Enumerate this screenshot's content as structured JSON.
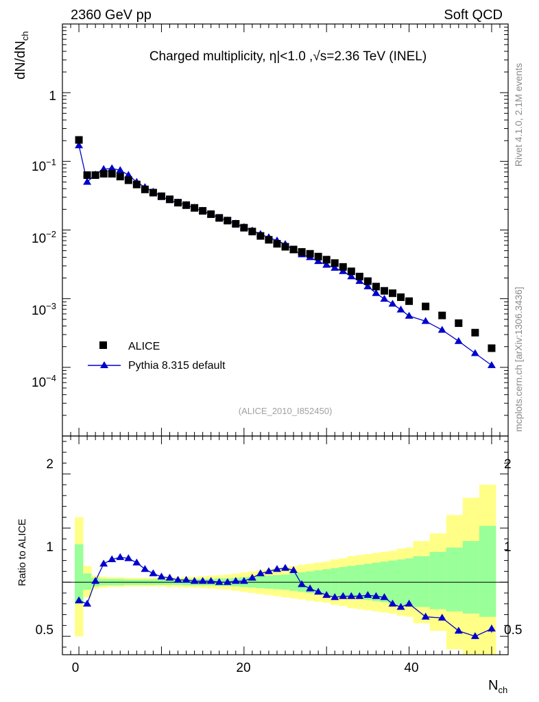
{
  "header": {
    "left_label": "2360 GeV pp",
    "right_label": "Soft QCD",
    "title": "Charged multiplicity, η|<1.0 ,√s=2.36 TeV (INEL)",
    "watermark": "(ALICE_2010_I852450)",
    "side_top": "Rivet 4.1.0,  2.1M events",
    "side_bottom": "mcplots.cern.ch [arXiv:1306.3436]"
  },
  "colors": {
    "data": "#000000",
    "mc": "#0000cc",
    "band_inner": "#99ff99",
    "band_outer": "#ffff88"
  },
  "chart_data": [
    {
      "type": "scatter",
      "name": "main",
      "title": "Charged multiplicity, η|<1.0 ,√s=2.36 TeV (INEL)",
      "xlabel": "N_ch",
      "ylabel": "dN/dN_ch",
      "yscale": "log",
      "xlim": [
        -2,
        52
      ],
      "ylim": [
        1e-05,
        10
      ],
      "ytick_labels": [
        "10^-4",
        "10^-3",
        "10^-2",
        "10^-1",
        "1"
      ],
      "legend_position": "lower-left",
      "series": [
        {
          "name": "ALICE",
          "marker": "square",
          "x": [
            0,
            1,
            2,
            3,
            4,
            5,
            6,
            7,
            8,
            9,
            10,
            11,
            12,
            13,
            14,
            15,
            16,
            17,
            18,
            19,
            20,
            21,
            22,
            23,
            24,
            25,
            26,
            27,
            28,
            29,
            30,
            31,
            32,
            33,
            34,
            35,
            36,
            37,
            38,
            39,
            40,
            42,
            44,
            46,
            48,
            50
          ],
          "values": [
            0.205,
            0.063,
            0.063,
            0.066,
            0.066,
            0.06,
            0.053,
            0.046,
            0.039,
            0.035,
            0.031,
            0.028,
            0.025,
            0.023,
            0.021,
            0.019,
            0.017,
            0.015,
            0.0137,
            0.0123,
            0.0108,
            0.0095,
            0.0082,
            0.0072,
            0.0063,
            0.0057,
            0.0052,
            0.0048,
            0.0045,
            0.0041,
            0.0037,
            0.0033,
            0.0029,
            0.0025,
            0.0021,
            0.0018,
            0.0015,
            0.0013,
            0.0012,
            0.00105,
            0.00092,
            0.00077,
            0.00057,
            0.00044,
            0.00032,
            0.00019
          ]
        },
        {
          "name": "Pythia 8.315 default",
          "marker": "triangle",
          "line": true,
          "x": [
            0,
            1,
            2,
            3,
            4,
            5,
            6,
            7,
            8,
            9,
            10,
            11,
            12,
            13,
            14,
            15,
            16,
            17,
            18,
            19,
            20,
            21,
            22,
            23,
            24,
            25,
            26,
            27,
            28,
            29,
            30,
            31,
            32,
            33,
            34,
            35,
            36,
            37,
            38,
            39,
            40,
            42,
            44,
            46,
            48,
            50
          ],
          "values": [
            0.17,
            0.05,
            0.064,
            0.077,
            0.079,
            0.074,
            0.063,
            0.05,
            0.042,
            0.036,
            0.031,
            0.027,
            0.025,
            0.023,
            0.021,
            0.019,
            0.017,
            0.015,
            0.0137,
            0.0124,
            0.011,
            0.0098,
            0.0087,
            0.0078,
            0.007,
            0.0062,
            0.0051,
            0.0044,
            0.004,
            0.0035,
            0.0031,
            0.0028,
            0.0025,
            0.0021,
            0.0018,
            0.0015,
            0.0012,
            0.00099,
            0.00084,
            0.00069,
            0.00056,
            0.00047,
            0.00035,
            0.00024,
            0.00016,
            0.000107
          ]
        }
      ]
    },
    {
      "type": "line",
      "name": "ratio",
      "xlabel": "N_ch",
      "ylabel": "Ratio to ALICE",
      "xlim": [
        -2,
        52
      ],
      "ylim": [
        0.33,
        2.35
      ],
      "ytick_labels": [
        "0.5",
        "1",
        "2"
      ],
      "xtick_labels": [
        "0",
        "20",
        "40"
      ],
      "bands": {
        "edges": [
          -0.5,
          0.5,
          1.5,
          2.5,
          3.5,
          4.5,
          5.5,
          6.5,
          7.5,
          8.5,
          9.5,
          10.5,
          11.5,
          12.5,
          13.5,
          14.5,
          15.5,
          16.5,
          17.5,
          18.5,
          19.5,
          20.5,
          21.5,
          22.5,
          23.5,
          24.5,
          25.5,
          26.5,
          27.5,
          28.5,
          29.5,
          30.5,
          31.5,
          32.5,
          33.5,
          34.5,
          35.5,
          36.5,
          37.5,
          38.5,
          39.5,
          40.5,
          42.5,
          44.5,
          46.5,
          48.5,
          50.5
        ],
        "inner_lo": [
          0.8,
          0.93,
          0.96,
          0.97,
          0.97,
          0.97,
          0.975,
          0.975,
          0.975,
          0.975,
          0.975,
          0.975,
          0.975,
          0.97,
          0.97,
          0.97,
          0.97,
          0.965,
          0.965,
          0.96,
          0.955,
          0.95,
          0.945,
          0.94,
          0.935,
          0.93,
          0.92,
          0.91,
          0.9,
          0.895,
          0.885,
          0.875,
          0.865,
          0.855,
          0.845,
          0.835,
          0.825,
          0.815,
          0.8,
          0.79,
          0.78,
          0.77,
          0.75,
          0.73,
          0.71,
          0.68
        ],
        "inner_hi": [
          1.35,
          1.08,
          1.04,
          1.03,
          1.03,
          1.03,
          1.025,
          1.025,
          1.025,
          1.025,
          1.025,
          1.025,
          1.025,
          1.03,
          1.03,
          1.03,
          1.03,
          1.035,
          1.035,
          1.04,
          1.045,
          1.05,
          1.055,
          1.06,
          1.065,
          1.07,
          1.08,
          1.09,
          1.1,
          1.11,
          1.12,
          1.13,
          1.14,
          1.15,
          1.16,
          1.17,
          1.18,
          1.19,
          1.2,
          1.21,
          1.22,
          1.24,
          1.28,
          1.32,
          1.38,
          1.52
        ],
        "outer_lo": [
          0.5,
          0.86,
          0.94,
          0.95,
          0.955,
          0.955,
          0.96,
          0.96,
          0.96,
          0.96,
          0.96,
          0.955,
          0.955,
          0.95,
          0.95,
          0.945,
          0.94,
          0.935,
          0.93,
          0.92,
          0.91,
          0.9,
          0.89,
          0.88,
          0.87,
          0.86,
          0.85,
          0.84,
          0.83,
          0.82,
          0.81,
          0.79,
          0.78,
          0.76,
          0.75,
          0.74,
          0.73,
          0.72,
          0.71,
          0.69,
          0.68,
          0.62,
          0.55,
          0.38,
          0.33,
          0.33
        ],
        "outer_hi": [
          1.6,
          1.15,
          1.06,
          1.05,
          1.045,
          1.045,
          1.04,
          1.04,
          1.04,
          1.04,
          1.04,
          1.045,
          1.045,
          1.05,
          1.05,
          1.055,
          1.06,
          1.065,
          1.07,
          1.08,
          1.09,
          1.1,
          1.11,
          1.12,
          1.13,
          1.14,
          1.15,
          1.16,
          1.17,
          1.18,
          1.19,
          1.21,
          1.22,
          1.24,
          1.25,
          1.26,
          1.27,
          1.28,
          1.29,
          1.31,
          1.32,
          1.38,
          1.45,
          1.62,
          1.78,
          1.9
        ]
      },
      "series": [
        {
          "name": "Pythia 8.315 default / ALICE",
          "x": [
            0,
            1,
            2,
            3,
            4,
            5,
            6,
            7,
            8,
            9,
            10,
            11,
            12,
            13,
            14,
            15,
            16,
            17,
            18,
            19,
            20,
            21,
            22,
            23,
            24,
            25,
            26,
            27,
            28,
            29,
            30,
            31,
            32,
            33,
            34,
            35,
            36,
            37,
            38,
            39,
            40,
            42,
            44,
            46,
            48,
            50
          ],
          "values": [
            0.83,
            0.8,
            1.01,
            1.17,
            1.21,
            1.23,
            1.22,
            1.18,
            1.12,
            1.08,
            1.05,
            1.04,
            1.02,
            1.02,
            1.01,
            1.01,
            1.01,
            1.0,
            1.0,
            1.01,
            1.01,
            1.04,
            1.08,
            1.1,
            1.12,
            1.13,
            1.11,
            0.98,
            0.94,
            0.91,
            0.88,
            0.86,
            0.87,
            0.87,
            0.87,
            0.88,
            0.87,
            0.86,
            0.8,
            0.77,
            0.8,
            0.68,
            0.67,
            0.55,
            0.5,
            0.57
          ],
          "errors": [
            0.02,
            0.02,
            0.01,
            0.01,
            0.01,
            0.01,
            0.01,
            0.01,
            0.01,
            0.01,
            0.01,
            0.01,
            0.01,
            0.01,
            0.01,
            0.01,
            0.01,
            0.01,
            0.01,
            0.01,
            0.01,
            0.01,
            0.01,
            0.01,
            0.01,
            0.01,
            0.01,
            0.01,
            0.01,
            0.01,
            0.01,
            0.01,
            0.01,
            0.01,
            0.01,
            0.01,
            0.01,
            0.01,
            0.015,
            0.015,
            0.015,
            0.02,
            0.02,
            0.025,
            0.025,
            0.035
          ]
        }
      ]
    }
  ]
}
